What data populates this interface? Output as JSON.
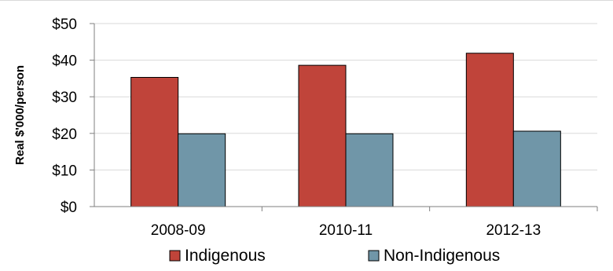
{
  "chart_data": {
    "type": "bar",
    "categories": [
      "2008-09",
      "2010-11",
      "2012-13"
    ],
    "series": [
      {
        "name": "Indigenous",
        "values": [
          35.3,
          38.6,
          41.9
        ],
        "color": "#c0443a"
      },
      {
        "name": "Non-Indigenous",
        "values": [
          19.9,
          19.9,
          20.6
        ],
        "color": "#7096a8"
      }
    ],
    "ylabel": "Real $'000/person",
    "ylim": [
      0,
      50
    ],
    "yticks": [
      0,
      10,
      20,
      30,
      40,
      50
    ],
    "ytick_labels": [
      "$0",
      "$10",
      "$20",
      "$30",
      "$40",
      "$50"
    ],
    "grid": true,
    "legend_position": "bottom"
  }
}
